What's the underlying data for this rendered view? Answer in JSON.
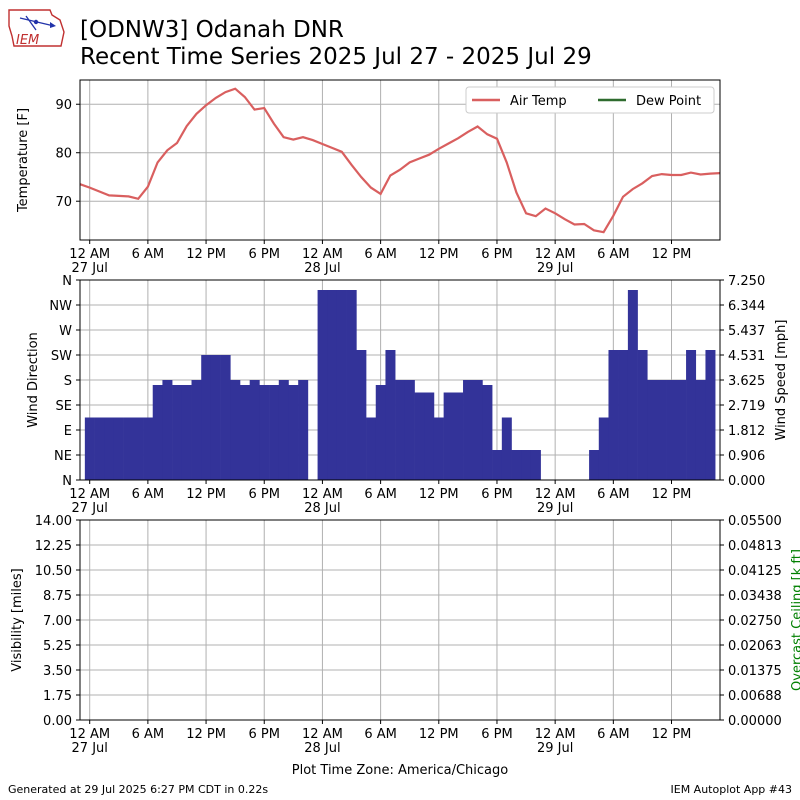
{
  "header": {
    "title_line1": "[ODNW3] Odanah DNR",
    "title_line2": "Recent Time Series 2025 Jul 27 - 2025 Jul 29",
    "logo_text": "IEM"
  },
  "footer": {
    "generated": "Generated at 29 Jul 2025 6:27 PM CDT in 0.22s",
    "app": "IEM Autoplot App #43",
    "timezone_label": "Plot Time Zone: America/Chicago"
  },
  "colors": {
    "air_temp": "#d95f5f",
    "dew_point": "#2e6b2e",
    "wind_bar": "#333399",
    "ceiling_label": "#008000",
    "grid": "#b0b0b0"
  },
  "chart_data": [
    {
      "type": "line",
      "ylabel": "Temperature [F]",
      "xlim": [
        -1,
        65
      ],
      "ylim": [
        62,
        95
      ],
      "yticks": [
        70,
        80,
        90
      ],
      "grid": true,
      "legend": "top-right",
      "series": [
        {
          "name": "Air Temp",
          "color": "#d95f5f",
          "x": [
            -1,
            0,
            1,
            2,
            3,
            4,
            5,
            6,
            7,
            8,
            9,
            10,
            11,
            12,
            13,
            14,
            15,
            16,
            17,
            18,
            19,
            20,
            21,
            22,
            23,
            24,
            25,
            26,
            27,
            28,
            29,
            30,
            31,
            32,
            33,
            34,
            35,
            36,
            37,
            38,
            39,
            40,
            41,
            42,
            43,
            44,
            45,
            46,
            47,
            48,
            49,
            50,
            51,
            52,
            53,
            54,
            55,
            56,
            57,
            58,
            59,
            60,
            61,
            62,
            63,
            64,
            65
          ],
          "values": [
            73.5,
            72.8,
            72.0,
            71.2,
            71.1,
            71.0,
            70.5,
            73.0,
            78.0,
            80.5,
            82.0,
            85.5,
            88.0,
            89.8,
            91.3,
            92.5,
            93.2,
            91.5,
            88.9,
            89.2,
            86.0,
            83.2,
            82.7,
            83.2,
            82.6,
            81.8,
            81.0,
            80.2,
            77.5,
            75.0,
            72.8,
            71.5,
            75.3,
            76.5,
            78.0,
            78.8,
            79.6,
            80.8,
            81.9,
            83.0,
            84.3,
            85.4,
            83.8,
            82.9,
            78.0,
            71.8,
            67.5,
            66.9,
            68.5,
            67.5,
            66.3,
            65.2,
            65.3,
            64.0,
            63.6,
            67.0,
            70.9,
            72.5,
            73.7,
            75.2,
            75.6,
            75.4,
            75.4,
            75.9,
            75.5,
            75.7,
            75.8
          ]
        },
        {
          "name": "Dew Point",
          "color": "#2e6b2e",
          "x": [],
          "values": []
        }
      ]
    },
    {
      "type": "bar",
      "ylabel": "Wind Direction",
      "y2label": "Wind Speed [mph]",
      "xlim": [
        -1,
        65
      ],
      "ylim": [
        0,
        8
      ],
      "y2lim": [
        0,
        7.25
      ],
      "yticks": [
        "N",
        "NE",
        "E",
        "SE",
        "S",
        "SW",
        "W",
        "NW",
        "N"
      ],
      "y2ticks": [
        "0.000",
        "0.906",
        "1.812",
        "2.719",
        "3.625",
        "4.531",
        "5.437",
        "6.344",
        "7.250"
      ],
      "grid": true,
      "bar_width": 1,
      "x": [
        0,
        1,
        2,
        3,
        4,
        5,
        6,
        7,
        8,
        9,
        10,
        11,
        12,
        13,
        14,
        15,
        16,
        17,
        18,
        19,
        20,
        21,
        22,
        23,
        24,
        25,
        26,
        27,
        28,
        29,
        30,
        31,
        32,
        33,
        34,
        35,
        36,
        37,
        38,
        39,
        40,
        41,
        42,
        43,
        44,
        45,
        46,
        47,
        48,
        49,
        50,
        51,
        52,
        53,
        54,
        55,
        56,
        57,
        58,
        59,
        60,
        61,
        62,
        63,
        64
      ],
      "values": [
        2.5,
        2.5,
        2.5,
        2.5,
        2.5,
        2.5,
        2.5,
        3.8,
        4.0,
        3.8,
        3.8,
        4.0,
        5.0,
        5.0,
        5.0,
        4.0,
        3.8,
        4.0,
        3.8,
        3.8,
        4.0,
        3.8,
        4.0,
        0,
        7.6,
        7.6,
        7.6,
        7.6,
        5.2,
        2.5,
        3.8,
        5.2,
        4.0,
        4.0,
        3.5,
        3.5,
        2.5,
        3.5,
        3.5,
        4.0,
        4.0,
        3.8,
        1.2,
        2.5,
        1.2,
        1.2,
        1.2,
        0,
        0,
        0,
        0,
        0,
        1.2,
        2.5,
        5.2,
        5.2,
        7.6,
        5.2,
        4.0,
        4.0,
        4.0,
        4.0,
        5.2,
        4.0,
        5.2
      ]
    },
    {
      "type": "line",
      "ylabel": "Visibility [miles]",
      "y2label": "Overcast Ceiling [k ft]",
      "xlim": [
        -1,
        65
      ],
      "ylim": [
        0,
        14
      ],
      "y2lim": [
        0,
        0.055
      ],
      "yticks": [
        "0.00",
        "1.75",
        "3.50",
        "5.25",
        "7.00",
        "8.75",
        "10.50",
        "12.25",
        "14.00"
      ],
      "y2ticks": [
        "0.00000",
        "0.00688",
        "0.01375",
        "0.02063",
        "0.02750",
        "0.03438",
        "0.04125",
        "0.04813",
        "0.05500"
      ],
      "grid": true,
      "series": []
    }
  ],
  "x_axis": {
    "ticks": [
      {
        "x": 0,
        "label": "12 AM",
        "sub": "27 Jul"
      },
      {
        "x": 6,
        "label": "6 AM",
        "sub": ""
      },
      {
        "x": 12,
        "label": "12 PM",
        "sub": ""
      },
      {
        "x": 18,
        "label": "6 PM",
        "sub": ""
      },
      {
        "x": 24,
        "label": "12 AM",
        "sub": "28 Jul"
      },
      {
        "x": 30,
        "label": "6 AM",
        "sub": ""
      },
      {
        "x": 36,
        "label": "12 PM",
        "sub": ""
      },
      {
        "x": 42,
        "label": "6 PM",
        "sub": ""
      },
      {
        "x": 48,
        "label": "12 AM",
        "sub": "29 Jul"
      },
      {
        "x": 54,
        "label": "6 AM",
        "sub": ""
      },
      {
        "x": 60,
        "label": "12 PM",
        "sub": ""
      }
    ]
  }
}
